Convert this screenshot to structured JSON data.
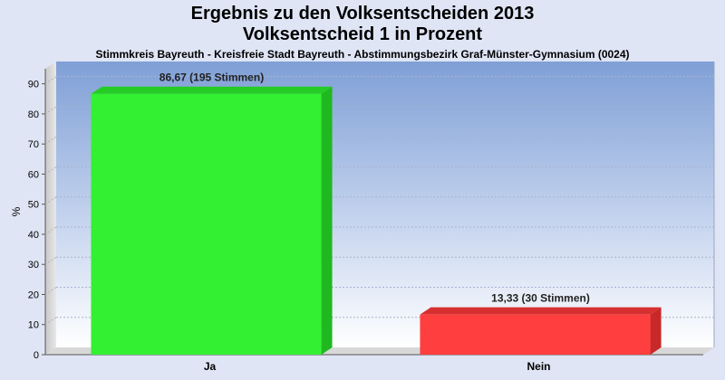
{
  "chart_data": {
    "type": "bar",
    "title": "Ergebnis zu den Volksentscheiden 2013",
    "title2": "Volksentscheid 1 in Prozent",
    "subtitle": "Stimmkreis Bayreuth - Kreisfreie Stadt Bayreuth - Abstimmungsbezirk Graf-Münster-Gymnasium (0024)",
    "ylabel": "%",
    "ylim": [
      0,
      95
    ],
    "yticks": [
      0,
      10,
      20,
      30,
      40,
      50,
      60,
      70,
      80,
      90
    ],
    "grid": true,
    "categories": [
      "Ja",
      "Nein"
    ],
    "values": [
      86.67,
      13.33
    ],
    "data_labels": [
      "86,67 (195 Stimmen)",
      "13,33 (30 Stimmen)"
    ],
    "colors": [
      "#33f033",
      "#ff3f3f"
    ],
    "side_colors": [
      "#20b820",
      "#c82828"
    ],
    "top_colors": [
      "#25cc25",
      "#d83030"
    ]
  }
}
